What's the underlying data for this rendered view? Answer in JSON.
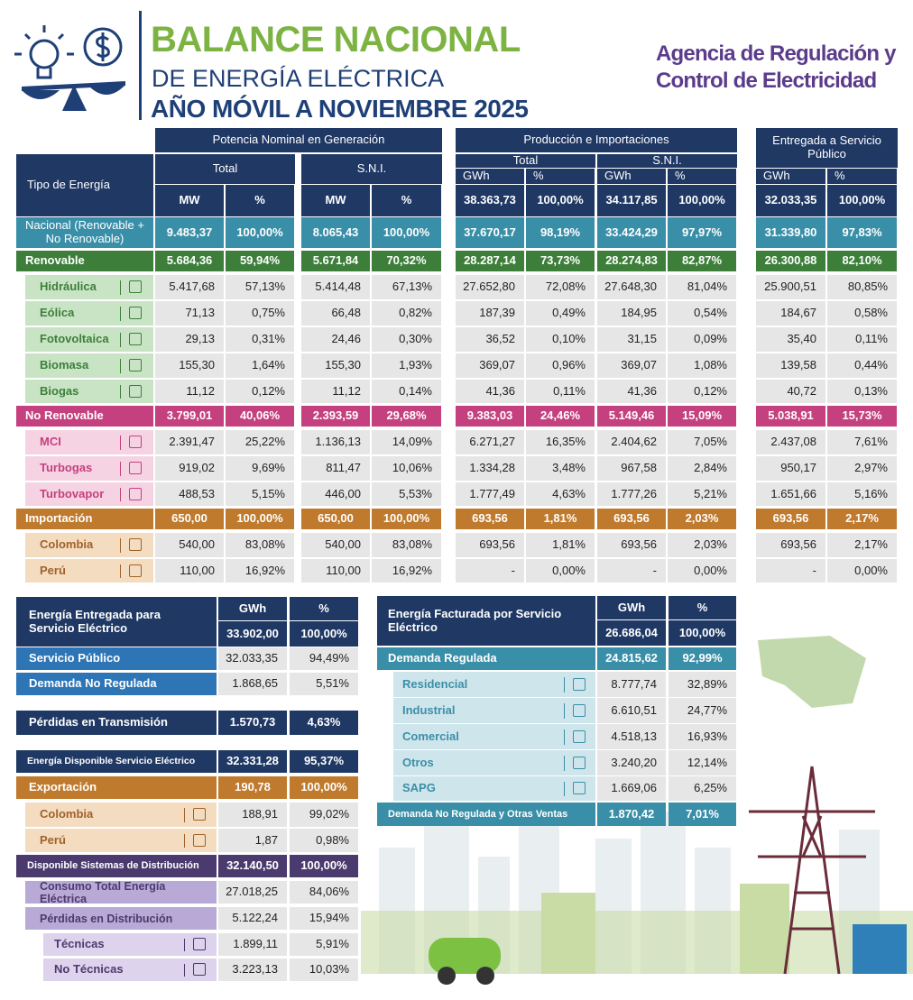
{
  "header": {
    "title": "BALANCE NACIONAL",
    "subtitle": "DE ENERGÍA ELÉCTRICA",
    "period": "AÑO MÓVIL A NOVIEMBRE 2025",
    "agency": [
      "Agencia de Regulación y",
      "Control de Electricidad"
    ]
  },
  "main_table": {
    "row_header": "Tipo de Energía",
    "groups": [
      "Potencia Nominal en Generación",
      "Producción e Importaciones",
      "Entregada a Servicio Público"
    ],
    "subgroups": [
      "Total",
      "S.N.I.",
      "Total",
      "S.N.I."
    ],
    "units": [
      "MW",
      "%",
      "MW",
      "%",
      "GWh",
      "%",
      "GWh",
      "%",
      "GWh",
      "%"
    ],
    "totals": [
      "38.363,73",
      "100,00%",
      "34.117,85",
      "100,00%",
      "32.033,35",
      "100,00%"
    ],
    "rows": [
      {
        "label": "Nacional (Renovable + No Renovable)",
        "values": [
          "9.483,37",
          "100,00%",
          "8.065,43",
          "100,00%",
          "37.670,17",
          "98,19%",
          "33.424,29",
          "97,97%",
          "31.339,80",
          "97,83%"
        ]
      },
      {
        "label": "Renovable",
        "values": [
          "5.684,36",
          "59,94%",
          "5.671,84",
          "70,32%",
          "28.287,14",
          "73,73%",
          "28.274,83",
          "82,87%",
          "26.300,88",
          "82,10%"
        ]
      },
      {
        "label": "Hidráulica",
        "values": [
          "5.417,68",
          "57,13%",
          "5.414,48",
          "67,13%",
          "27.652,80",
          "72,08%",
          "27.648,30",
          "81,04%",
          "25.900,51",
          "80,85%"
        ]
      },
      {
        "label": "Eólica",
        "values": [
          "71,13",
          "0,75%",
          "66,48",
          "0,82%",
          "187,39",
          "0,49%",
          "184,95",
          "0,54%",
          "184,67",
          "0,58%"
        ]
      },
      {
        "label": "Fotovoltaica",
        "values": [
          "29,13",
          "0,31%",
          "24,46",
          "0,30%",
          "36,52",
          "0,10%",
          "31,15",
          "0,09%",
          "35,40",
          "0,11%"
        ]
      },
      {
        "label": "Biomasa",
        "values": [
          "155,30",
          "1,64%",
          "155,30",
          "1,93%",
          "369,07",
          "0,96%",
          "369,07",
          "1,08%",
          "139,58",
          "0,44%"
        ]
      },
      {
        "label": "Biogas",
        "values": [
          "11,12",
          "0,12%",
          "11,12",
          "0,14%",
          "41,36",
          "0,11%",
          "41,36",
          "0,12%",
          "40,72",
          "0,13%"
        ]
      },
      {
        "label": "No Renovable",
        "values": [
          "3.799,01",
          "40,06%",
          "2.393,59",
          "29,68%",
          "9.383,03",
          "24,46%",
          "5.149,46",
          "15,09%",
          "5.038,91",
          "15,73%"
        ]
      },
      {
        "label": "MCI",
        "values": [
          "2.391,47",
          "25,22%",
          "1.136,13",
          "14,09%",
          "6.271,27",
          "16,35%",
          "2.404,62",
          "7,05%",
          "2.437,08",
          "7,61%"
        ]
      },
      {
        "label": "Turbogas",
        "values": [
          "919,02",
          "9,69%",
          "811,47",
          "10,06%",
          "1.334,28",
          "3,48%",
          "967,58",
          "2,84%",
          "950,17",
          "2,97%"
        ]
      },
      {
        "label": "Turbovapor",
        "values": [
          "488,53",
          "5,15%",
          "446,00",
          "5,53%",
          "1.777,49",
          "4,63%",
          "1.777,26",
          "5,21%",
          "1.651,66",
          "5,16%"
        ]
      },
      {
        "label": "Importación",
        "values": [
          "650,00",
          "100,00%",
          "650,00",
          "100,00%",
          "693,56",
          "1,81%",
          "693,56",
          "2,03%",
          "693,56",
          "2,17%"
        ]
      },
      {
        "label": "Colombia",
        "values": [
          "540,00",
          "83,08%",
          "540,00",
          "83,08%",
          "693,56",
          "1,81%",
          "693,56",
          "2,03%",
          "693,56",
          "2,17%"
        ]
      },
      {
        "label": "Perú",
        "values": [
          "110,00",
          "16,92%",
          "110,00",
          "16,92%",
          "-",
          "0,00%",
          "-",
          "0,00%",
          "-",
          "0,00%"
        ]
      }
    ]
  },
  "delivered": {
    "title": "Energía Entregada para Servicio Eléctrico",
    "units": [
      "GWh",
      "%"
    ],
    "total": [
      "33.902,00",
      "100,00%"
    ],
    "rows": [
      {
        "label": "Servicio Público",
        "values": [
          "32.033,35",
          "94,49%"
        ]
      },
      {
        "label": "Demanda No Regulada",
        "values": [
          "1.868,65",
          "5,51%"
        ]
      },
      {
        "label": "Pérdidas en Transmisión",
        "values": [
          "1.570,73",
          "4,63%"
        ]
      },
      {
        "label": "Energía Disponible Servicio Eléctrico",
        "values": [
          "32.331,28",
          "95,37%"
        ]
      },
      {
        "label": "Exportación",
        "values": [
          "190,78",
          "100,00%"
        ]
      },
      {
        "label": "Colombia",
        "values": [
          "188,91",
          "99,02%"
        ]
      },
      {
        "label": "Perú",
        "values": [
          "1,87",
          "0,98%"
        ]
      },
      {
        "label": "Disponible Sistemas de Distribución",
        "values": [
          "32.140,50",
          "100,00%"
        ]
      },
      {
        "label": "Consumo Total Energía Eléctrica",
        "values": [
          "27.018,25",
          "84,06%"
        ]
      },
      {
        "label": "Pérdidas en Distribución",
        "values": [
          "5.122,24",
          "15,94%"
        ]
      },
      {
        "label": "Técnicas",
        "values": [
          "1.899,11",
          "5,91%"
        ]
      },
      {
        "label": "No Técnicas",
        "values": [
          "3.223,13",
          "10,03%"
        ]
      }
    ]
  },
  "billed": {
    "title": "Energía Facturada por Servicio Eléctrico",
    "units": [
      "GWh",
      "%"
    ],
    "total": [
      "26.686,04",
      "100,00%"
    ],
    "rows": [
      {
        "label": "Demanda Regulada",
        "values": [
          "24.815,62",
          "92,99%"
        ]
      },
      {
        "label": "Residencial",
        "values": [
          "8.777,74",
          "32,89%"
        ]
      },
      {
        "label": "Industrial",
        "values": [
          "6.610,51",
          "24,77%"
        ]
      },
      {
        "label": "Comercial",
        "values": [
          "4.518,13",
          "16,93%"
        ]
      },
      {
        "label": "Otros",
        "values": [
          "3.240,20",
          "12,14%"
        ]
      },
      {
        "label": "SAPG",
        "values": [
          "1.669,06",
          "6,25%"
        ]
      },
      {
        "label": "Demanda No Regulada y Otras Ventas",
        "values": [
          "1.870,42",
          "7,01%"
        ]
      }
    ]
  }
}
